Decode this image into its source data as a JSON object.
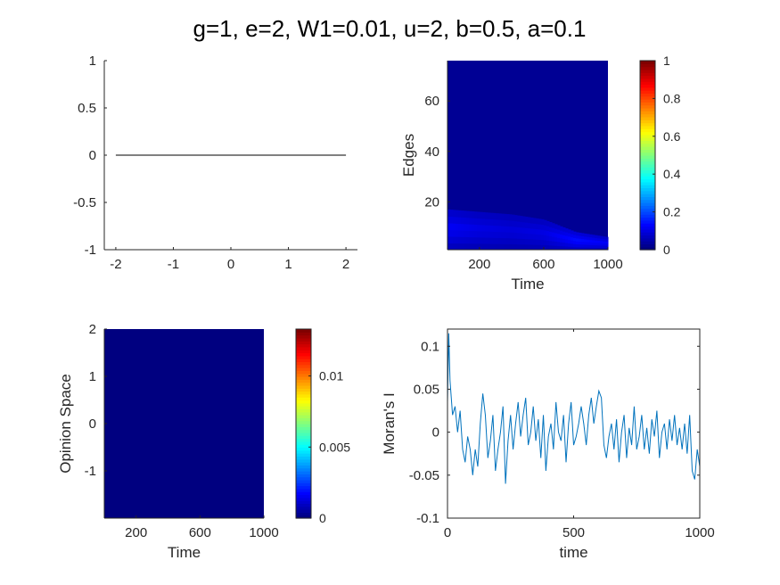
{
  "figure": {
    "title": "g=1, e=2, W1=0.01, u=2, b=0.5, a=0.1"
  },
  "colors": {
    "axis": "#262626",
    "line_black": "#000000",
    "line_blue": "#0072BD",
    "heat_base": "#00008F"
  },
  "chart_data": [
    {
      "id": "top-left",
      "type": "line",
      "title": "",
      "xlabel": "",
      "ylabel": "",
      "xlim": [
        -2.2,
        2.2
      ],
      "ylim": [
        -1,
        1
      ],
      "xticks": [
        -2,
        -1,
        0,
        1,
        2
      ],
      "xtick_labels": [
        "-2",
        "-1",
        "0",
        "1",
        "2"
      ],
      "yticks": [
        -1,
        -0.5,
        0,
        0.5,
        1
      ],
      "ytick_labels": [
        "-1",
        "-0.5",
        "0",
        "0.5",
        "1"
      ],
      "series": [
        {
          "x": [
            -2,
            2
          ],
          "y": [
            0,
            0
          ]
        }
      ]
    },
    {
      "id": "top-right",
      "type": "heatmap",
      "title": "",
      "xlabel": "Time",
      "ylabel": "Edges",
      "xlim": [
        1,
        1000
      ],
      "ylim": [
        1,
        76
      ],
      "xticks": [
        200,
        600,
        1000
      ],
      "xtick_labels": [
        "200",
        "600",
        "1000"
      ],
      "yticks": [
        20,
        40,
        60
      ],
      "ytick_labels": [
        "20",
        "40",
        "60"
      ],
      "colorbar": {
        "range": [
          0,
          1
        ],
        "ticks": [
          0,
          0.2,
          0.4,
          0.6,
          0.8,
          1
        ],
        "tick_labels": [
          "0",
          "0.2",
          "0.4",
          "0.6",
          "0.8",
          "1"
        ]
      },
      "band": {
        "time": [
          1,
          200,
          400,
          600,
          800,
          1000
        ],
        "upper_edge": [
          17,
          16,
          15,
          13,
          8,
          6
        ],
        "peak_value": [
          0.12,
          0.1,
          0.09,
          0.1,
          0.14,
          0.12
        ],
        "background_value": 0.02
      }
    },
    {
      "id": "bottom-left",
      "type": "heatmap",
      "title": "",
      "xlabel": "Time",
      "ylabel": "Opinion Space",
      "xlim": [
        1,
        1000
      ],
      "ylim": [
        -2,
        2
      ],
      "xticks": [
        200,
        600,
        1000
      ],
      "xtick_labels": [
        "200",
        "600",
        "1000"
      ],
      "yticks": [
        -1,
        0,
        1,
        2
      ],
      "ytick_labels": [
        "-1",
        "0",
        "1",
        "2"
      ],
      "colorbar": {
        "range": [
          0,
          0.0133
        ],
        "ticks": [
          0,
          0.005,
          0.01
        ],
        "tick_labels": [
          "0",
          "0.005",
          "0.01"
        ]
      },
      "background_value": 0
    },
    {
      "id": "bottom-right",
      "type": "line",
      "title": "",
      "xlabel": "time",
      "ylabel": "Moran's I",
      "xlim": [
        0,
        1000
      ],
      "ylim": [
        -0.1,
        0.12
      ],
      "xticks": [
        0,
        500,
        1000
      ],
      "xtick_labels": [
        "0",
        "500",
        "1000"
      ],
      "yticks": [
        -0.1,
        -0.05,
        0,
        0.05,
        0.1
      ],
      "ytick_labels": [
        "-0.1",
        "-0.05",
        "0",
        "0.05",
        "0.1"
      ],
      "series": [
        {
          "x": [
            0,
            5,
            10,
            20,
            30,
            40,
            50,
            60,
            70,
            80,
            90,
            100,
            110,
            120,
            130,
            140,
            150,
            160,
            170,
            180,
            190,
            200,
            210,
            220,
            230,
            240,
            250,
            260,
            270,
            280,
            290,
            300,
            310,
            320,
            330,
            340,
            350,
            360,
            370,
            380,
            390,
            400,
            410,
            420,
            430,
            440,
            450,
            460,
            470,
            480,
            490,
            500,
            510,
            520,
            530,
            540,
            550,
            560,
            570,
            580,
            590,
            600,
            610,
            620,
            630,
            640,
            650,
            660,
            670,
            680,
            690,
            700,
            710,
            720,
            730,
            740,
            750,
            760,
            770,
            780,
            790,
            800,
            810,
            820,
            830,
            840,
            850,
            860,
            870,
            880,
            890,
            900,
            910,
            920,
            930,
            940,
            950,
            960,
            970,
            980,
            990,
            1000
          ],
          "y": [
            0.035,
            0.115,
            0.06,
            0.02,
            0.03,
            0.0,
            0.025,
            -0.02,
            -0.035,
            -0.005,
            -0.02,
            -0.05,
            -0.02,
            -0.04,
            0.01,
            0.045,
            0.02,
            -0.03,
            -0.01,
            0.02,
            -0.045,
            -0.02,
            0.0,
            0.03,
            -0.06,
            -0.01,
            0.02,
            -0.02,
            0.01,
            0.035,
            -0.005,
            0.02,
            0.04,
            -0.015,
            0.0,
            0.03,
            -0.01,
            0.015,
            -0.03,
            0.02,
            -0.045,
            -0.005,
            0.01,
            -0.02,
            0.035,
            0.0,
            -0.01,
            0.02,
            -0.035,
            0.01,
            0.035,
            -0.015,
            -0.005,
            0.01,
            0.03,
            0.01,
            -0.015,
            0.02,
            0.04,
            0.01,
            0.03,
            0.048,
            0.04,
            -0.015,
            -0.03,
            -0.005,
            0.01,
            -0.02,
            0.015,
            -0.035,
            0.0,
            0.02,
            -0.03,
            0.005,
            -0.015,
            0.03,
            -0.02,
            -0.005,
            0.02,
            -0.02,
            0.005,
            -0.025,
            0.015,
            -0.005,
            0.025,
            -0.03,
            0.0,
            0.01,
            -0.02,
            0.015,
            -0.01,
            0.02,
            -0.015,
            0.005,
            -0.02,
            0.01,
            -0.025,
            0.02,
            -0.045,
            -0.055,
            -0.02,
            -0.04
          ]
        }
      ]
    }
  ]
}
